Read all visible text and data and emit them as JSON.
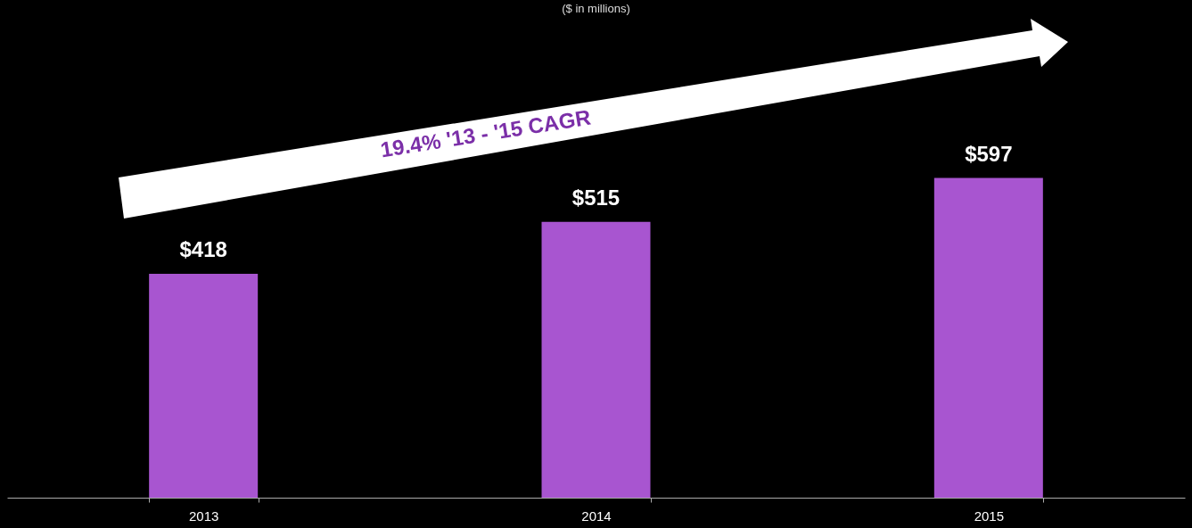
{
  "chart_data": {
    "type": "bar",
    "subtitle": "($ in millions)",
    "categories": [
      "2013",
      "2014",
      "2015"
    ],
    "values": [
      418,
      515,
      597
    ],
    "value_labels": [
      "$418",
      "$515",
      "$597"
    ],
    "color": "#a855d0",
    "annotations": [
      "19.4% '13 - '15 CAGR"
    ]
  }
}
